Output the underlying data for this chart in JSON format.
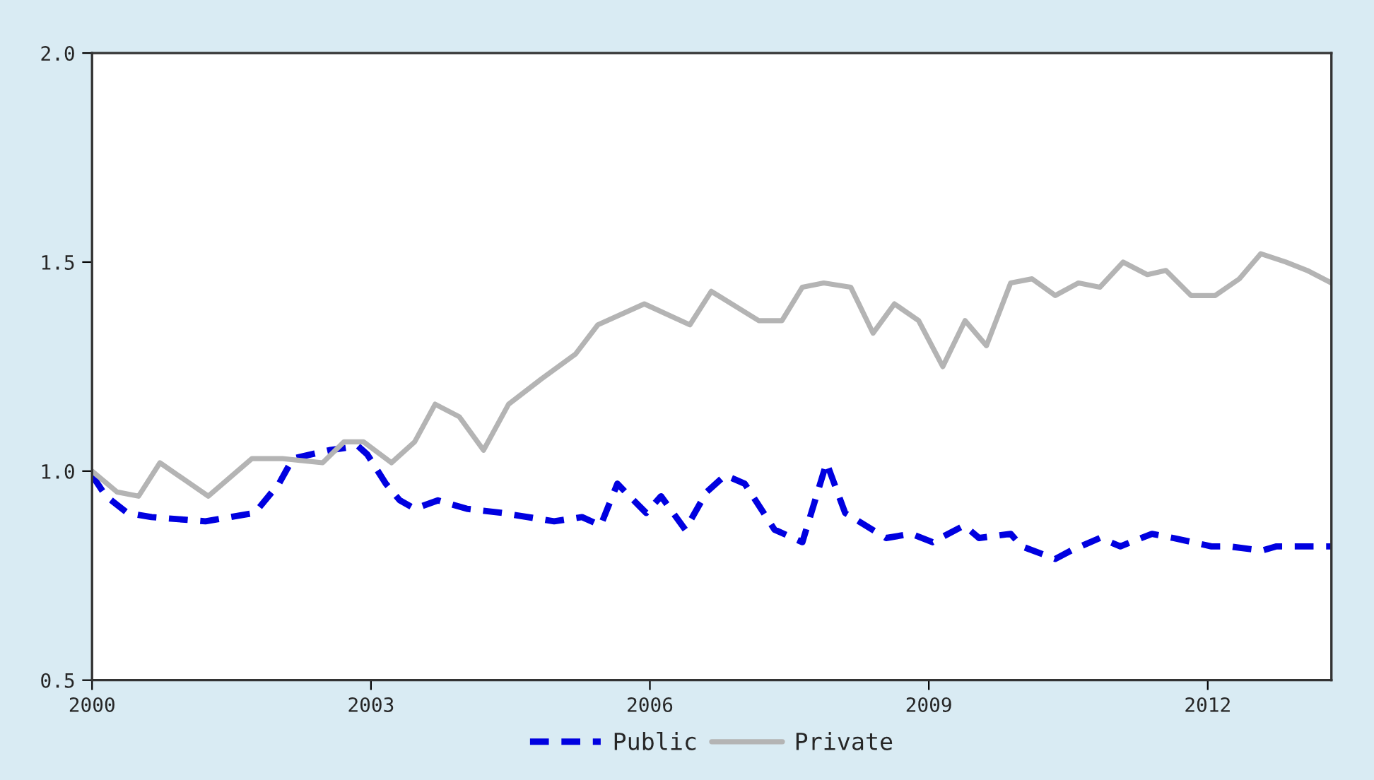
{
  "chart_data": {
    "type": "line",
    "xlim": [
      2000,
      2013.33
    ],
    "xticks": [
      2000,
      2003,
      2006,
      2009,
      2012
    ],
    "ylim": [
      0.5,
      2.0
    ],
    "yticks": [
      {
        "value": 0.5,
        "label": "0.5"
      },
      {
        "value": 1.0,
        "label": "1.0"
      },
      {
        "value": 1.5,
        "label": "1.5"
      },
      {
        "value": 2.0,
        "label": "2.0"
      }
    ],
    "grid": false,
    "legend": "bottom",
    "marker": "none",
    "series": [
      {
        "name": "Public",
        "color": "#0000e0",
        "line_style": "dashed",
        "x": [
          2000.0,
          2000.15,
          2000.38,
          2000.64,
          2001.22,
          2001.75,
          2002.01,
          2002.16,
          2002.55,
          2002.86,
          2002.96,
          2003.16,
          2003.31,
          2003.47,
          2003.72,
          2004.03,
          2004.41,
          2004.97,
          2005.27,
          2005.47,
          2005.65,
          2005.78,
          2005.96,
          2006.12,
          2006.38,
          2006.61,
          2006.81,
          2007.02,
          2007.34,
          2007.64,
          2007.9,
          2008.1,
          2008.54,
          2008.81,
          2009.04,
          2009.38,
          2009.54,
          2009.88,
          2010.0,
          2010.36,
          2010.53,
          2010.84,
          2011.06,
          2011.4,
          2011.63,
          2012.04,
          2012.23,
          2012.58,
          2012.74,
          2013.1,
          2013.33
        ],
        "values": [
          0.99,
          0.94,
          0.9,
          0.89,
          0.88,
          0.9,
          0.97,
          1.03,
          1.05,
          1.06,
          1.04,
          0.97,
          0.93,
          0.91,
          0.93,
          0.91,
          0.9,
          0.88,
          0.89,
          0.87,
          0.97,
          0.94,
          0.9,
          0.94,
          0.86,
          0.95,
          0.99,
          0.97,
          0.86,
          0.83,
          1.02,
          0.9,
          0.84,
          0.85,
          0.83,
          0.87,
          0.84,
          0.85,
          0.82,
          0.79,
          0.81,
          0.84,
          0.82,
          0.85,
          0.84,
          0.82,
          0.82,
          0.81,
          0.82,
          0.82,
          0.82
        ]
      },
      {
        "name": "Private",
        "color": "#b4b4b4",
        "line_style": "solid",
        "x": [
          2000.0,
          2000.27,
          2000.5,
          2000.73,
          2001.25,
          2001.72,
          2002.05,
          2002.48,
          2002.71,
          2002.92,
          2003.22,
          2003.47,
          2003.69,
          2003.95,
          2004.21,
          2004.48,
          2004.83,
          2005.2,
          2005.44,
          2005.94,
          2006.43,
          2006.66,
          2007.17,
          2007.42,
          2007.64,
          2007.87,
          2008.16,
          2008.4,
          2008.63,
          2008.89,
          2009.15,
          2009.39,
          2009.62,
          2009.88,
          2010.11,
          2010.36,
          2010.61,
          2010.84,
          2011.09,
          2011.35,
          2011.55,
          2011.82,
          2012.08,
          2012.34,
          2012.57,
          2012.84,
          2013.07,
          2013.33
        ],
        "values": [
          1.0,
          0.95,
          0.94,
          1.02,
          0.94,
          1.03,
          1.03,
          1.02,
          1.07,
          1.07,
          1.02,
          1.07,
          1.16,
          1.13,
          1.05,
          1.16,
          1.22,
          1.28,
          1.35,
          1.4,
          1.35,
          1.43,
          1.36,
          1.36,
          1.44,
          1.45,
          1.44,
          1.33,
          1.4,
          1.36,
          1.25,
          1.36,
          1.3,
          1.45,
          1.46,
          1.42,
          1.45,
          1.44,
          1.5,
          1.47,
          1.48,
          1.42,
          1.42,
          1.46,
          1.52,
          1.5,
          1.48,
          1.45
        ]
      }
    ]
  }
}
